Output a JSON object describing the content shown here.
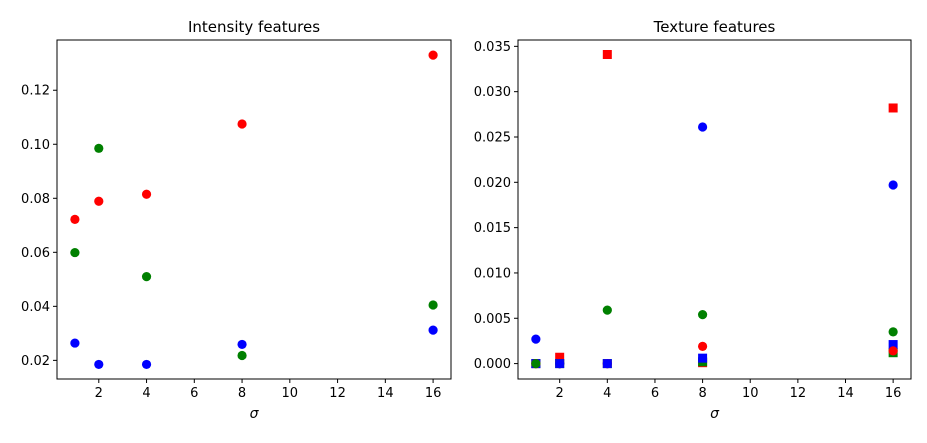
{
  "chart_data": [
    {
      "type": "scatter",
      "title": "Intensity features",
      "xlabel": "σ",
      "ylabel": "",
      "xlim": [
        0.25,
        16.75
      ],
      "ylim": [
        0.0131,
        0.1386
      ],
      "xticks": [
        2,
        4,
        6,
        8,
        10,
        12,
        14,
        16
      ],
      "yticks": [
        0.02,
        0.04,
        0.06,
        0.08,
        0.1,
        0.12
      ],
      "ytick_labels": [
        "0.02",
        "0.04",
        "0.06",
        "0.08",
        "0.10",
        "0.12"
      ],
      "grid": false,
      "series": [
        {
          "color": "#ff0000",
          "marker": "circle",
          "points": [
            [
              1,
              0.0722
            ],
            [
              2,
              0.0789
            ],
            [
              4,
              0.0815
            ],
            [
              8,
              0.1075
            ],
            [
              16,
              0.133
            ]
          ]
        },
        {
          "color": "#008000",
          "marker": "circle",
          "points": [
            [
              1,
              0.0599
            ],
            [
              2,
              0.0985
            ],
            [
              4,
              0.051
            ],
            [
              8,
              0.0218
            ],
            [
              16,
              0.0405
            ]
          ]
        },
        {
          "color": "#0000ff",
          "marker": "circle",
          "points": [
            [
              1,
              0.0264
            ],
            [
              2,
              0.0185
            ],
            [
              4,
              0.0185
            ],
            [
              8,
              0.0259
            ],
            [
              16,
              0.0312
            ]
          ]
        }
      ]
    },
    {
      "type": "scatter",
      "title": "Texture features",
      "xlabel": "σ",
      "ylabel": "",
      "xlim": [
        0.25,
        16.75
      ],
      "ylim": [
        -0.0017,
        0.0357
      ],
      "xticks": [
        2,
        4,
        6,
        8,
        10,
        12,
        14,
        16
      ],
      "yticks": [
        0.0,
        0.005,
        0.01,
        0.015,
        0.02,
        0.025,
        0.03,
        0.035
      ],
      "ytick_labels": [
        "0.000",
        "0.005",
        "0.010",
        "0.015",
        "0.020",
        "0.025",
        "0.030",
        "0.035"
      ],
      "grid": false,
      "series": [
        {
          "color": "#ff0000",
          "marker": "square",
          "points": [
            [
              1,
              0.0
            ],
            [
              2,
              0.0007
            ],
            [
              4,
              0.0341
            ],
            [
              8,
              0.0001
            ],
            [
              16,
              0.0282
            ]
          ]
        },
        {
          "color": "#008000",
          "marker": "square",
          "points": [
            [
              1,
              0.0
            ],
            [
              2,
              0.0
            ],
            [
              4,
              0.0
            ],
            [
              8,
              0.0002
            ],
            [
              16,
              0.0012
            ]
          ]
        },
        {
          "color": "#0000ff",
          "marker": "square",
          "points": [
            [
              1,
              0.0
            ],
            [
              2,
              0.0
            ],
            [
              4,
              0.0
            ],
            [
              8,
              0.0006
            ],
            [
              16,
              0.0021
            ]
          ]
        },
        {
          "color": "#ff0000",
          "marker": "circle",
          "points": [
            [
              1,
              0.0
            ],
            [
              2,
              0.0
            ],
            [
              4,
              0.0
            ],
            [
              8,
              0.0019
            ],
            [
              16,
              0.0014
            ]
          ]
        },
        {
          "color": "#008000",
          "marker": "circle",
          "points": [
            [
              1,
              0.0
            ],
            [
              2,
              0.0
            ],
            [
              4,
              0.0059
            ],
            [
              8,
              0.0054
            ],
            [
              16,
              0.0035
            ]
          ]
        },
        {
          "color": "#0000ff",
          "marker": "circle",
          "points": [
            [
              1,
              0.0027
            ],
            [
              2,
              0.0
            ],
            [
              4,
              0.0
            ],
            [
              8,
              0.0261
            ],
            [
              16,
              0.0197
            ]
          ]
        }
      ]
    }
  ]
}
